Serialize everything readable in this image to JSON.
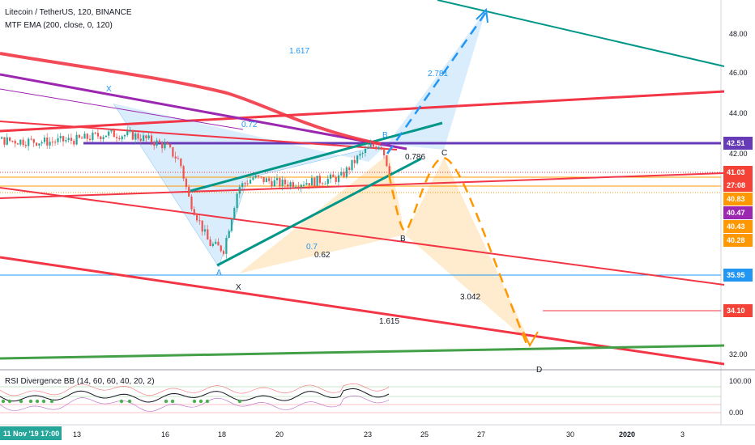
{
  "header": {
    "symbol_line": "Litecoin / TetherUS, 120, BINANCE",
    "indicator_line": "MTF EMA (200, close, 0, 120)"
  },
  "rsi_panel": {
    "title": "RSI Divergence BB (14, 60, 60, 40, 20, 2)",
    "axis_labels": [
      "100.00",
      "0.00"
    ]
  },
  "time_axis": {
    "current_label": "11 Nov '19  17:00",
    "labels": [
      "13",
      "16",
      "18",
      "20",
      "23",
      "25",
      "27",
      "30",
      "2020",
      "3"
    ]
  },
  "price_axis": {
    "ticks": [
      "48.00",
      "46.00",
      "44.00",
      "42.00",
      "32.00"
    ]
  },
  "price_badges": [
    {
      "text": "42.51",
      "color": "#673ab7"
    },
    {
      "text": "41.03",
      "color": "#f44336"
    },
    {
      "text": "27:08",
      "color": "#f44336"
    },
    {
      "text": "40.83",
      "color": "#ff9800"
    },
    {
      "text": "40.47",
      "color": "#9c27b0"
    },
    {
      "text": "40.43",
      "color": "#ff9800"
    },
    {
      "text": "40.28",
      "color": "#ff9800"
    },
    {
      "text": "35.95",
      "color": "#2196f3"
    },
    {
      "text": "34.10",
      "color": "#f44336"
    }
  ],
  "annotations": {
    "fib_1617": "1.617",
    "fib_2781": "2.781",
    "fib_072": "0.72",
    "fib_0786": "0.786",
    "fib_07": "0.7",
    "fib_062": "0.62",
    "fib_3042": "3.042",
    "fib_1615": "1.615",
    "pt_x_top": "X",
    "pt_a": "A",
    "pt_x_bottom": "X",
    "pt_b_top": "B",
    "pt_c": "C",
    "pt_b": "B",
    "pt_d": "D"
  },
  "chart_data": {
    "type": "candlestick",
    "x_labels": [
      "13",
      "16",
      "18",
      "20",
      "23",
      "25",
      "27",
      "30",
      "2020",
      "3"
    ],
    "y_ticks": [
      48,
      46,
      44,
      42,
      32
    ],
    "close_path": [
      [
        7,
        42.8
      ],
      [
        12,
        42.6
      ],
      [
        13,
        42.7
      ],
      [
        14,
        43.0
      ],
      [
        15,
        42.9
      ],
      [
        16,
        42.4
      ],
      [
        16.5,
        41.6
      ],
      [
        16.8,
        39.8
      ],
      [
        17.5,
        37.5
      ],
      [
        18,
        37.2
      ],
      [
        18.5,
        40.3
      ],
      [
        19,
        40.8
      ],
      [
        20,
        40.5
      ],
      [
        21,
        40.6
      ],
      [
        22,
        40.8
      ],
      [
        22.6,
        41.8
      ],
      [
        23,
        42.3
      ],
      [
        23.4,
        42.5
      ],
      [
        23.7,
        41.0
      ]
    ],
    "colors": {
      "ema": "#f23645",
      "channel": "#f23645",
      "wedge": "#009688",
      "harmonic_blue": "#bbdefb",
      "harmonic_orange": "#ffe0b2",
      "projection_blue": "#2196f3",
      "projection_orange": "#ff9800",
      "support": "#43a047",
      "resistance": "#673ab7"
    }
  }
}
